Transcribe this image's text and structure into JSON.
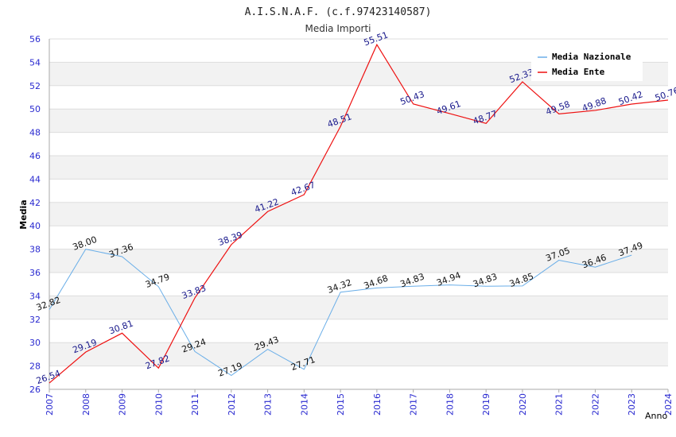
{
  "chart_data": {
    "type": "line",
    "title": "A.I.S.N.A.F. (c.f.97423140587)",
    "subtitle": "Media Importi",
    "xlabel": "Anno",
    "ylabel": "Media",
    "ylim": [
      26,
      56
    ],
    "yticks": [
      "26",
      "28",
      "30",
      "32",
      "34",
      "36",
      "38",
      "40",
      "42",
      "44",
      "46",
      "48",
      "50",
      "52",
      "54",
      "56"
    ],
    "categories": [
      "2007",
      "2008",
      "2009",
      "2010",
      "2011",
      "2012",
      "2013",
      "2014",
      "2015",
      "2016",
      "2017",
      "2018",
      "2019",
      "2020",
      "2021",
      "2022",
      "2023",
      "2024"
    ],
    "legend_position": "top-right",
    "series": [
      {
        "name": "Media Nazionale",
        "color": "#6aaee8",
        "label_color": "#111111",
        "values": [
          32.82,
          38.0,
          37.36,
          34.79,
          29.24,
          27.19,
          29.43,
          27.71,
          34.32,
          34.68,
          34.83,
          34.94,
          34.83,
          34.85,
          37.05,
          36.46,
          37.49,
          null
        ],
        "labels": [
          "32.82",
          "38.00",
          "37.36",
          "34.79",
          "29.24",
          "27.19",
          "29.43",
          "27.71",
          "34.32",
          "34.68",
          "34.83",
          "34.94",
          "34.83",
          "34.85",
          "37.05",
          "36.46",
          "37.49",
          null
        ]
      },
      {
        "name": "Media Ente",
        "color": "#ee1111",
        "label_color": "#1a1a8c",
        "values": [
          26.54,
          29.19,
          30.81,
          27.82,
          33.83,
          38.39,
          41.22,
          42.67,
          48.51,
          55.51,
          50.43,
          49.61,
          48.77,
          52.33,
          49.58,
          49.88,
          50.42,
          50.76
        ],
        "labels": [
          "26.54",
          "29.19",
          "30.81",
          "27.82",
          "33.83",
          "38.39",
          "41.22",
          "42.67",
          "48.51",
          "55.51",
          "50.43",
          "49.61",
          "48.77",
          "52.33",
          "49.58",
          "49.88",
          "50.42",
          "50.76"
        ]
      }
    ]
  }
}
